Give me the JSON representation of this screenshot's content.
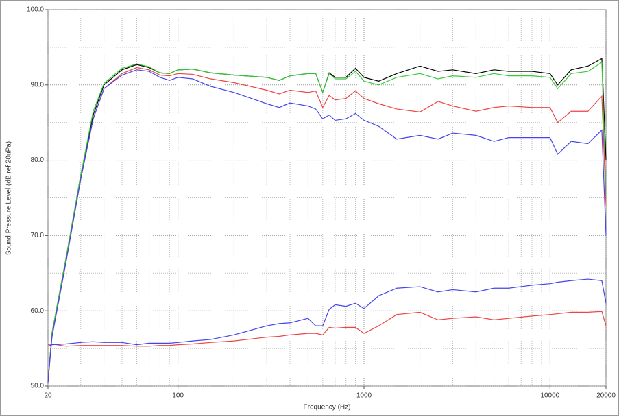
{
  "chart_data": {
    "type": "line",
    "xlabel": "Frequency (Hz)",
    "ylabel": "Sound Pressure Level (dB ref 20uPa)",
    "log_x": true,
    "grid": true,
    "x": [
      20,
      21,
      25,
      30,
      35,
      40,
      50,
      60,
      70,
      80,
      90,
      100,
      120,
      150,
      200,
      300,
      350,
      400,
      500,
      550,
      600,
      650,
      700,
      800,
      900,
      1000,
      1200,
      1500,
      2000,
      2500,
      3000,
      4000,
      5000,
      6000,
      8000,
      10000,
      11000,
      13000,
      16000,
      19000,
      20000
    ],
    "series": [
      {
        "color": "#000000",
        "values": [
          50.5,
          57,
          67,
          78,
          86,
          90,
          92,
          92.7,
          92.3,
          91.6,
          91.5,
          92,
          92.1,
          91.6,
          91.3,
          91,
          90.6,
          91.2,
          91.5,
          91.5,
          89,
          91.6,
          91,
          91,
          92.2,
          91,
          90.5,
          91.5,
          92.5,
          91.8,
          92,
          91.5,
          92,
          91.8,
          91.8,
          91.5,
          90,
          92,
          92.5,
          93.5,
          80
        ]
      },
      {
        "color": "#33cc33",
        "values": [
          50.5,
          57,
          67,
          78,
          86.5,
          90.2,
          92.2,
          92.8,
          92.4,
          91.6,
          91.5,
          92,
          92.1,
          91.6,
          91.3,
          91,
          90.6,
          91.2,
          91.5,
          91.5,
          89,
          91.5,
          90.8,
          90.8,
          91.8,
          90.5,
          90,
          91,
          91.5,
          90.8,
          91.2,
          91,
          91.5,
          91.2,
          91.2,
          91,
          89.5,
          91.5,
          91.8,
          93,
          75
        ]
      },
      {
        "color": "#ee4444",
        "values": [
          50.5,
          56.5,
          66.5,
          77.5,
          85.5,
          89.5,
          91.5,
          92.3,
          92,
          91.3,
          91.2,
          91.5,
          91.4,
          90.8,
          90.3,
          89.3,
          88.8,
          89.3,
          89,
          89.2,
          87,
          88.6,
          88,
          88.2,
          89.2,
          88.2,
          87.5,
          86.8,
          86.4,
          87.8,
          87.2,
          86.5,
          87,
          87.2,
          87,
          87,
          85,
          86.5,
          86.5,
          88.5,
          74
        ]
      },
      {
        "color": "#4444ee",
        "values": [
          50.5,
          56.5,
          66.5,
          77.5,
          85.5,
          89.5,
          91.3,
          92,
          91.8,
          91,
          90.6,
          91,
          90.8,
          89.8,
          89,
          87.5,
          87,
          87.6,
          87.2,
          86.8,
          85.5,
          86,
          85.3,
          85.5,
          86.2,
          85.3,
          84.5,
          82.8,
          83.3,
          82.8,
          83.6,
          83.3,
          82.5,
          83,
          83,
          83,
          80.8,
          82.5,
          82.2,
          84,
          70
        ]
      },
      {
        "color": "#ee4444",
        "values": [
          55.5,
          55.6,
          55.3,
          55.4,
          55.4,
          55.4,
          55.4,
          55.3,
          55.3,
          55.4,
          55.4,
          55.5,
          55.6,
          55.8,
          56,
          56.5,
          56.6,
          56.8,
          57,
          57,
          56.8,
          57.8,
          57.7,
          57.8,
          57.8,
          57,
          58,
          59.5,
          59.8,
          58.8,
          59,
          59.2,
          58.8,
          59,
          59.3,
          59.5,
          59.6,
          59.8,
          59.8,
          59.9,
          58
        ]
      },
      {
        "color": "#4444ee",
        "values": [
          55.3,
          55.5,
          55.6,
          55.8,
          55.9,
          55.8,
          55.8,
          55.5,
          55.7,
          55.7,
          55.7,
          55.8,
          56,
          56.2,
          56.8,
          58,
          58.3,
          58.4,
          59,
          58,
          58,
          60.2,
          60.8,
          60.6,
          61,
          60.3,
          62,
          63,
          63.2,
          62.5,
          62.8,
          62.5,
          63,
          63,
          63.4,
          63.6,
          63.8,
          64,
          64.2,
          64,
          61
        ]
      }
    ],
    "xlim": [
      20,
      20000
    ],
    "xticks": [
      20,
      100,
      1000,
      10000,
      20000
    ],
    "ylim": [
      50,
      100
    ],
    "yticks": [
      {
        "value": 50,
        "label": "50.0"
      },
      {
        "value": 60,
        "label": "60.0"
      },
      {
        "value": 70,
        "label": "70.0"
      },
      {
        "value": 80,
        "label": "80.0"
      },
      {
        "value": 90,
        "label": "90.0"
      },
      {
        "value": 100,
        "label": "100.0"
      }
    ]
  }
}
